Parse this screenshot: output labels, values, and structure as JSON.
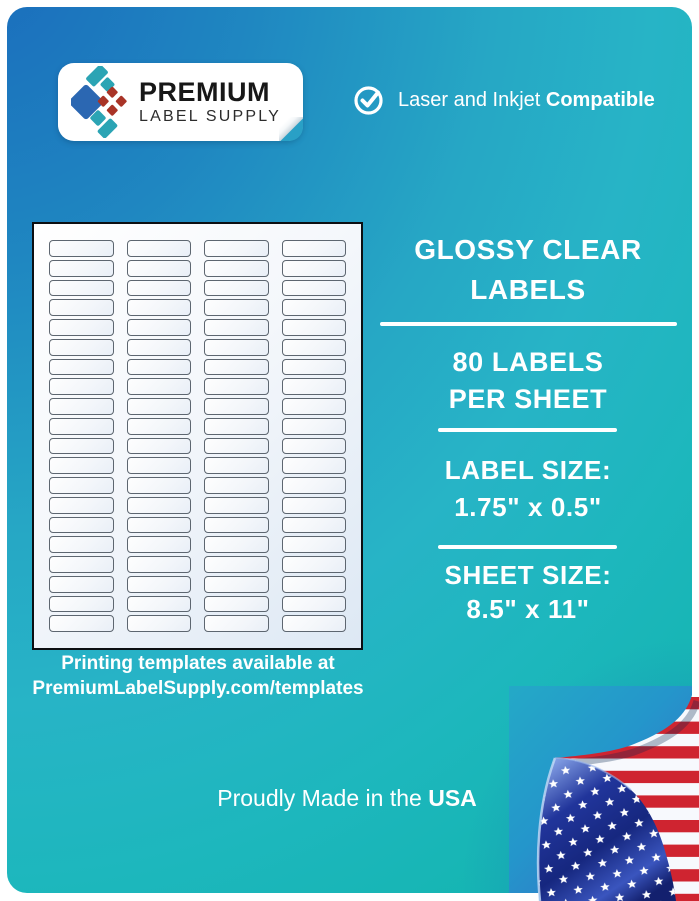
{
  "brand": {
    "name_line1": "PREMIUM",
    "name_line2": "LABEL SUPPLY"
  },
  "compatibility": {
    "text_regular": "Laser and Inkjet",
    "text_bold": "Compatible"
  },
  "sheet": {
    "columns": 4,
    "rows": 20,
    "label_count": 80,
    "caption_line1": "Printing templates available at",
    "caption_line2": "PremiumLabelSupply.com/templates"
  },
  "info": {
    "title_lines": [
      "GLOSSY CLEAR",
      "LABELS"
    ],
    "count_lines": [
      "80 LABELS",
      "PER SHEET"
    ],
    "label_size_lines": [
      "LABEL SIZE:",
      "1.75\" x 0.5\""
    ],
    "sheet_size_lines": [
      "SHEET SIZE:",
      "8.5\" x 11\""
    ]
  },
  "footer": {
    "made_in_regular": "Proudly Made in the",
    "made_in_bold": "USA"
  },
  "icons": {
    "compatibility": "check-circle",
    "corner": "usa-flag-page-curl",
    "brand": "diamond-cluster"
  },
  "colors": {
    "card_blue": "#1a6bbc",
    "card_teal": "#27b4c6",
    "logo_blue": "#2b67b2",
    "logo_teal": "#2ba4b4",
    "logo_red": "#a93427",
    "flag_red": "#cf2430",
    "flag_navy": "#1b2f8e",
    "text_white": "#ffffff"
  }
}
